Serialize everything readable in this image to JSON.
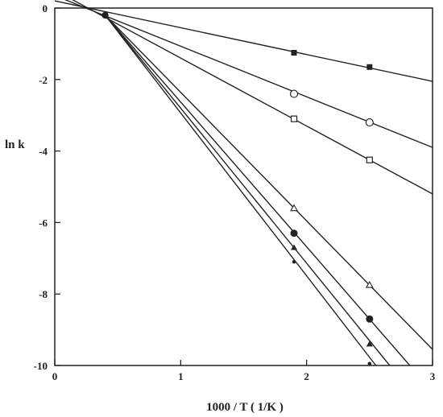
{
  "chart_data": {
    "type": "line",
    "title": "",
    "xlabel": "1000 / T ( 1/K )",
    "ylabel": "ln k",
    "xlim": [
      0,
      3
    ],
    "ylim": [
      -10,
      0
    ],
    "xticks": [
      0,
      1,
      2,
      3
    ],
    "yticks": [
      0,
      -2,
      -4,
      -6,
      -8,
      -10
    ],
    "grid": false,
    "legend": "none",
    "common_point": {
      "x": 0.4,
      "y": -0.2
    },
    "series": [
      {
        "marker": "filled-square",
        "line": [
          [
            0.0,
            0.2
          ],
          [
            3.0,
            -2.05
          ]
        ],
        "points": [
          [
            1.9,
            -1.25
          ],
          [
            2.5,
            -1.65
          ]
        ]
      },
      {
        "marker": "open-circle",
        "line": [
          [
            0.0,
            0.35
          ],
          [
            3.0,
            -3.9
          ]
        ],
        "points": [
          [
            1.9,
            -2.4
          ],
          [
            2.5,
            -3.2
          ]
        ]
      },
      {
        "marker": "open-square",
        "line": [
          [
            0.0,
            0.5
          ],
          [
            3.0,
            -5.2
          ]
        ],
        "points": [
          [
            1.9,
            -3.1
          ],
          [
            2.5,
            -4.25
          ]
        ]
      },
      {
        "marker": "open-triangle",
        "line": [
          [
            0.4,
            -0.2
          ],
          [
            3.0,
            -9.55
          ]
        ],
        "points": [
          [
            1.9,
            -5.6
          ],
          [
            2.5,
            -7.75
          ]
        ]
      },
      {
        "marker": "filled-circle",
        "line": [
          [
            0.4,
            -0.2
          ],
          [
            2.82,
            -10.0
          ]
        ],
        "points": [
          [
            1.9,
            -6.3
          ],
          [
            2.5,
            -8.7
          ]
        ]
      },
      {
        "marker": "filled-triangle",
        "line": [
          [
            0.4,
            -0.2
          ],
          [
            2.66,
            -10.0
          ]
        ],
        "points": [
          [
            1.9,
            -6.7
          ],
          [
            2.5,
            -9.4
          ]
        ]
      },
      {
        "marker": "small-dot",
        "line": [
          [
            0.4,
            -0.2
          ],
          [
            2.55,
            -10.0
          ]
        ],
        "points": [
          [
            1.9,
            -7.1
          ],
          [
            2.5,
            -9.95
          ]
        ]
      }
    ]
  }
}
